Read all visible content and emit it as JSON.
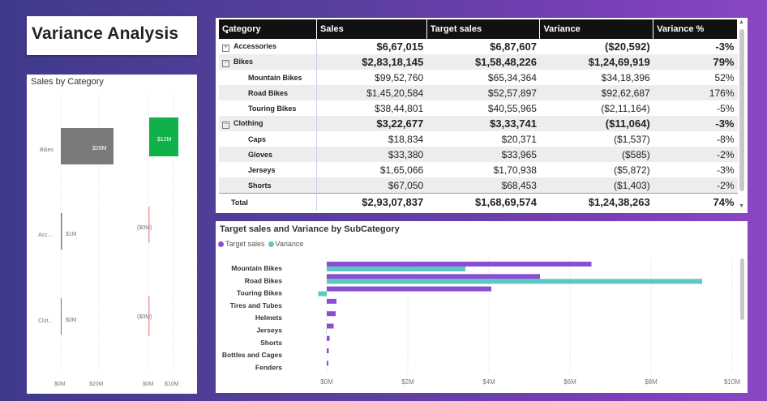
{
  "title": "Variance Analysis",
  "sales_by_category": {
    "header": "Sales by Category",
    "categories": [
      "Bikes",
      "Acc...",
      "Clot..."
    ],
    "sales_labels": [
      "$28M",
      "$1M",
      "$0M"
    ],
    "variance_labels": [
      "$12M",
      "($0M)",
      "($0M)"
    ],
    "sales_axis": [
      "$0M",
      "$20M"
    ],
    "variance_axis": [
      "$0M",
      "$10M"
    ],
    "colors": {
      "sales": "#7a7a7a",
      "variance_pos": "#10b04a",
      "variance_neg": "#f0a0a0"
    }
  },
  "matrix": {
    "columns": [
      "Category",
      "Sales",
      "Target sales",
      "Variance",
      "Variance %"
    ],
    "rows": [
      {
        "type": "group",
        "expander": "+",
        "category": "Accessories",
        "sales": "$6,67,015",
        "target": "$6,87,607",
        "variance": "($20,592)",
        "pct": "-3%"
      },
      {
        "type": "group",
        "expander": "-",
        "category": "Bikes",
        "sales": "$2,83,18,145",
        "target": "$1,58,48,226",
        "variance": "$1,24,69,919",
        "pct": "79%"
      },
      {
        "type": "child",
        "category": "Mountain Bikes",
        "sales": "$99,52,760",
        "target": "$65,34,364",
        "variance": "$34,18,396",
        "pct": "52%"
      },
      {
        "type": "child",
        "category": "Road Bikes",
        "sales": "$1,45,20,584",
        "target": "$52,57,897",
        "variance": "$92,62,687",
        "pct": "176%"
      },
      {
        "type": "child",
        "category": "Touring Bikes",
        "sales": "$38,44,801",
        "target": "$40,55,965",
        "variance": "($2,11,164)",
        "pct": "-5%"
      },
      {
        "type": "group",
        "expander": "-",
        "category": "Clothing",
        "sales": "$3,22,677",
        "target": "$3,33,741",
        "variance": "($11,064)",
        "pct": "-3%"
      },
      {
        "type": "child",
        "category": "Caps",
        "sales": "$18,834",
        "target": "$20,371",
        "variance": "($1,537)",
        "pct": "-8%"
      },
      {
        "type": "child",
        "category": "Gloves",
        "sales": "$33,380",
        "target": "$33,965",
        "variance": "($585)",
        "pct": "-2%"
      },
      {
        "type": "child",
        "category": "Jerseys",
        "sales": "$1,65,066",
        "target": "$1,70,938",
        "variance": "($5,872)",
        "pct": "-3%"
      },
      {
        "type": "child",
        "category": "Shorts",
        "sales": "$67,050",
        "target": "$68,453",
        "variance": "($1,403)",
        "pct": "-2%"
      }
    ],
    "total": {
      "category": "Total",
      "sales": "$2,93,07,837",
      "target": "$1,68,69,574",
      "variance": "$1,24,38,263",
      "pct": "74%"
    }
  },
  "subcategory_chart": {
    "header": "Target sales and Variance by SubCategory",
    "legend": [
      "Target sales",
      "Variance"
    ],
    "colors": {
      "target": "#8a4fd0",
      "variance": "#5cc8c6"
    },
    "x_ticks": [
      "$0M",
      "$2M",
      "$4M",
      "$6M",
      "$8M",
      "$10M"
    ]
  },
  "chart_data": {
    "type": "bar",
    "orientation": "horizontal",
    "categories": [
      "Mountain Bikes",
      "Road Bikes",
      "Touring Bikes",
      "Tires and Tubes",
      "Helmets",
      "Jerseys",
      "Shorts",
      "Bottles and Cages",
      "Fenders"
    ],
    "series": [
      {
        "name": "Target sales",
        "values": [
          6.53,
          5.26,
          4.06,
          0.24,
          0.22,
          0.17,
          0.07,
          0.05,
          0.04
        ]
      },
      {
        "name": "Variance",
        "values": [
          3.42,
          9.26,
          -0.21,
          0.0,
          0.0,
          -0.01,
          0.0,
          0.0,
          0.0
        ]
      }
    ],
    "xlim": [
      0,
      10
    ],
    "x_unit": "$M",
    "legend_position": "top-left"
  }
}
